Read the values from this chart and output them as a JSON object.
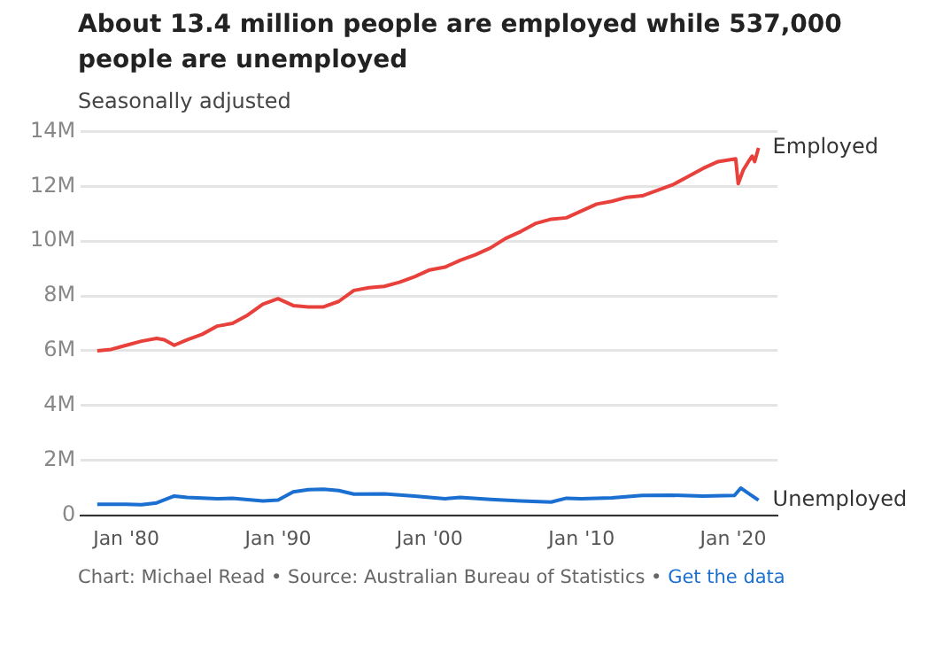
{
  "chart_data": {
    "type": "line",
    "title": "About 13.4 million people are employed while 537,000 people are unemployed",
    "subtitle": "Seasonally adjusted",
    "annotations": [
      "Chart: Michael Read • Source: Australian Bureau of Statistics •",
      "Get the data"
    ],
    "xlim": [
      "1977-01",
      "2022-12"
    ],
    "xticks": [
      {
        "value": "1980-01",
        "label": "Jan '80"
      },
      {
        "value": "1990-01",
        "label": "Jan '90"
      },
      {
        "value": "2000-01",
        "label": "Jan '00"
      },
      {
        "value": "2010-01",
        "label": "Jan '10"
      },
      {
        "value": "2020-01",
        "label": "Jan '20"
      }
    ],
    "ylim": [
      0,
      14000000
    ],
    "yticks": [
      {
        "value": 0,
        "label": "0"
      },
      {
        "value": 2000000,
        "label": "2M"
      },
      {
        "value": 4000000,
        "label": "4M"
      },
      {
        "value": 6000000,
        "label": "6M"
      },
      {
        "value": 8000000,
        "label": "8M"
      },
      {
        "value": 10000000,
        "label": "10M"
      },
      {
        "value": 12000000,
        "label": "12M"
      },
      {
        "value": 14000000,
        "label": "14M"
      }
    ],
    "grid": "y",
    "legend": false,
    "marker": "none",
    "line_style": "solid",
    "series": [
      {
        "name": "Employed",
        "color": "#e8403a",
        "x": [
          "1978-02",
          "1979-01",
          "1980-01",
          "1981-01",
          "1982-01",
          "1982-07",
          "1983-03",
          "1984-01",
          "1985-01",
          "1986-01",
          "1987-01",
          "1988-01",
          "1989-01",
          "1990-01",
          "1991-01",
          "1992-01",
          "1993-01",
          "1994-01",
          "1995-01",
          "1996-01",
          "1997-01",
          "1998-01",
          "1999-01",
          "2000-01",
          "2001-01",
          "2002-01",
          "2003-01",
          "2004-01",
          "2005-01",
          "2006-01",
          "2007-01",
          "2008-01",
          "2009-01",
          "2010-01",
          "2011-01",
          "2012-01",
          "2013-01",
          "2014-01",
          "2015-01",
          "2016-01",
          "2017-01",
          "2018-01",
          "2019-01",
          "2020-03",
          "2020-05",
          "2020-09",
          "2021-01",
          "2021-04",
          "2021-06",
          "2021-09"
        ],
        "values": [
          6000000,
          6050000,
          6200000,
          6350000,
          6450000,
          6400000,
          6200000,
          6400000,
          6600000,
          6900000,
          7000000,
          7300000,
          7700000,
          7900000,
          7650000,
          7600000,
          7600000,
          7800000,
          8200000,
          8300000,
          8350000,
          8500000,
          8700000,
          8950000,
          9050000,
          9300000,
          9500000,
          9750000,
          10100000,
          10350000,
          10650000,
          10800000,
          10850000,
          11100000,
          11350000,
          11450000,
          11600000,
          11650000,
          11850000,
          12050000,
          12350000,
          12650000,
          12900000,
          13000000,
          12100000,
          12600000,
          12900000,
          13100000,
          12900000,
          13400000
        ]
      },
      {
        "name": "Unemployed",
        "color": "#1a6fd1",
        "x": [
          "1978-02",
          "1980-01",
          "1981-01",
          "1982-01",
          "1983-03",
          "1984-01",
          "1986-01",
          "1987-01",
          "1989-01",
          "1990-01",
          "1991-01",
          "1992-01",
          "1993-01",
          "1994-01",
          "1995-01",
          "1997-01",
          "1999-01",
          "2001-01",
          "2002-01",
          "2004-01",
          "2006-01",
          "2008-01",
          "2009-01",
          "2010-01",
          "2012-01",
          "2014-01",
          "2016-01",
          "2018-01",
          "2020-02",
          "2020-07",
          "2021-01",
          "2021-09"
        ],
        "values": [
          400000,
          400000,
          380000,
          450000,
          700000,
          650000,
          600000,
          620000,
          520000,
          550000,
          850000,
          930000,
          950000,
          900000,
          770000,
          780000,
          700000,
          600000,
          650000,
          580000,
          520000,
          480000,
          620000,
          600000,
          630000,
          720000,
          730000,
          700000,
          720000,
          990000,
          800000,
          550000
        ]
      }
    ]
  }
}
